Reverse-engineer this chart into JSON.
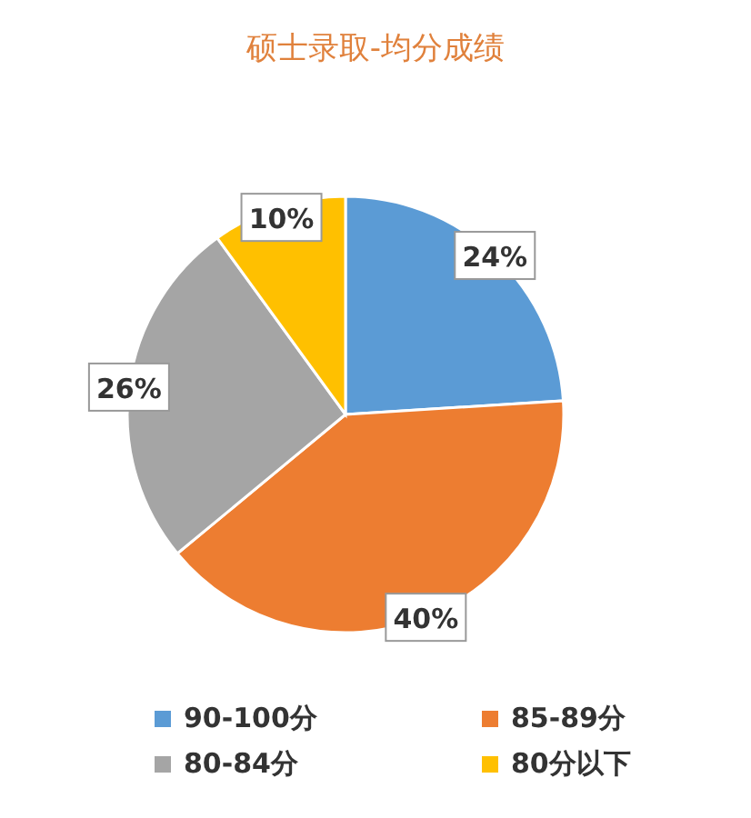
{
  "chart_data": {
    "type": "pie",
    "title": "硕士录取-均分成绩",
    "categories": [
      "90-100分",
      "85-89分",
      "80-84分",
      "80分以下"
    ],
    "values": [
      24,
      40,
      26,
      10
    ],
    "value_labels": [
      "24%",
      "40%",
      "26%",
      "10%"
    ],
    "colors": [
      "#5b9bd5",
      "#ed7d31",
      "#a5a5a5",
      "#ffc000"
    ],
    "legend": "bottom"
  }
}
